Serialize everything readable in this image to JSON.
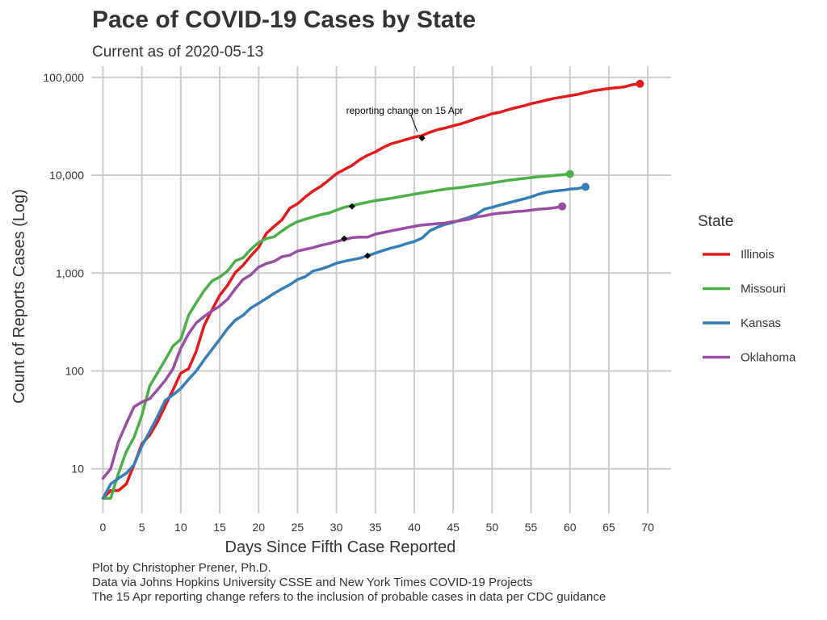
{
  "title": "Pace of COVID-19 Cases by State",
  "subtitle": "Current as of 2020-05-13",
  "caption": [
    "Plot by Christopher Prener, Ph.D.",
    "Data via Johns Hopkins University CSSE and New York Times COVID-19 Projects",
    "The 15 Apr reporting change refers to the inclusion of probable cases in data per CDC guidance"
  ],
  "chart_data": {
    "type": "line",
    "title": "Pace of COVID-19 Cases by State",
    "subtitle": "Current as of 2020-05-13",
    "xlabel": "Days Since Fifth Case Reported",
    "ylabel": "Count of Reports Cases (Log)",
    "y_scale": "log",
    "xlim": [
      -1.5,
      73
    ],
    "ylim": [
      3.5,
      130000
    ],
    "x_ticks": [
      0,
      5,
      10,
      15,
      20,
      25,
      30,
      35,
      40,
      45,
      50,
      55,
      60,
      65,
      70
    ],
    "x_tick_labels": [
      "0",
      "5",
      "10",
      "15",
      "20",
      "25",
      "30",
      "35",
      "40",
      "45",
      "50",
      "55",
      "60",
      "65",
      "70"
    ],
    "y_ticks": [
      10,
      100,
      1000,
      10000,
      100000
    ],
    "y_tick_labels": [
      "10",
      "100",
      "1,000",
      "10,000",
      "100,000"
    ],
    "grid": true,
    "legend": {
      "title": "State",
      "position": "right"
    },
    "annotation": {
      "text": "reporting change on 15 Apr",
      "x": 41,
      "y": 24000
    },
    "series": [
      {
        "name": "Illinois",
        "color": "#e41a1c",
        "x": [
          0,
          1,
          2,
          3,
          4,
          5,
          6,
          7,
          8,
          9,
          10,
          11,
          12,
          13,
          14,
          15,
          16,
          17,
          18,
          19,
          20,
          21,
          22,
          23,
          24,
          25,
          26,
          27,
          28,
          29,
          30,
          31,
          32,
          33,
          34,
          35,
          36,
          37,
          38,
          39,
          40,
          41,
          42,
          43,
          44,
          45,
          46,
          47,
          48,
          49,
          50,
          51,
          52,
          53,
          54,
          55,
          56,
          57,
          58,
          59,
          60,
          61,
          62,
          63,
          64,
          65,
          66,
          67,
          68,
          69
        ],
        "y": [
          5,
          6,
          6,
          7,
          11,
          18,
          22,
          30,
          44,
          64,
          95,
          105,
          160,
          290,
          420,
          590,
          750,
          1010,
          1200,
          1500,
          1830,
          2540,
          3000,
          3500,
          4600,
          5100,
          6000,
          6900,
          7700,
          8900,
          10360,
          11400,
          12600,
          14400,
          16000,
          17300,
          19200,
          20900,
          22000,
          23200,
          24500,
          25400,
          27500,
          29200,
          30400,
          32000,
          33500,
          35600,
          38000,
          40000,
          42500,
          44000,
          46500,
          48900,
          51000,
          53900,
          56000,
          58500,
          61000,
          62900,
          65000,
          67000,
          70000,
          73000,
          75000,
          77000,
          78500,
          80000,
          84000,
          86000
        ]
      },
      {
        "name": "Missouri",
        "color": "#4daf4a",
        "x": [
          0,
          1,
          2,
          3,
          4,
          5,
          6,
          7,
          8,
          9,
          10,
          11,
          12,
          13,
          14,
          15,
          16,
          17,
          18,
          19,
          20,
          21,
          22,
          23,
          24,
          25,
          26,
          27,
          28,
          29,
          30,
          31,
          32,
          33,
          34,
          35,
          36,
          37,
          38,
          39,
          40,
          41,
          42,
          43,
          44,
          45,
          46,
          47,
          48,
          49,
          50,
          51,
          52,
          53,
          54,
          55,
          56,
          57,
          58,
          59,
          60
        ],
        "y": [
          5,
          5,
          9,
          15,
          21,
          35,
          70,
          95,
          130,
          180,
          210,
          370,
          500,
          660,
          830,
          910,
          1050,
          1330,
          1430,
          1750,
          2050,
          2250,
          2350,
          2700,
          3050,
          3350,
          3550,
          3750,
          3950,
          4100,
          4400,
          4700,
          4900,
          5100,
          5300,
          5500,
          5650,
          5800,
          6000,
          6200,
          6400,
          6600,
          6800,
          7000,
          7200,
          7350,
          7500,
          7700,
          7900,
          8100,
          8350,
          8600,
          8850,
          9050,
          9250,
          9450,
          9650,
          9800,
          9950,
          10100,
          10300
        ]
      },
      {
        "name": "Kansas",
        "color": "#377eb8",
        "x": [
          0,
          1,
          2,
          3,
          4,
          5,
          6,
          7,
          8,
          9,
          10,
          11,
          12,
          13,
          14,
          15,
          16,
          17,
          18,
          19,
          20,
          21,
          22,
          23,
          24,
          25,
          26,
          27,
          28,
          29,
          30,
          31,
          32,
          33,
          34,
          35,
          36,
          37,
          38,
          39,
          40,
          41,
          42,
          43,
          44,
          45,
          46,
          47,
          48,
          49,
          50,
          51,
          52,
          53,
          54,
          55,
          56,
          57,
          58,
          59,
          60,
          61,
          62
        ],
        "y": [
          5,
          7,
          8,
          9,
          11,
          17,
          24,
          34,
          50,
          57,
          66,
          82,
          100,
          130,
          165,
          210,
          270,
          330,
          370,
          440,
          490,
          550,
          620,
          690,
          760,
          860,
          920,
          1050,
          1100,
          1170,
          1260,
          1320,
          1370,
          1420,
          1500,
          1600,
          1700,
          1800,
          1880,
          2000,
          2100,
          2280,
          2700,
          2950,
          3150,
          3300,
          3500,
          3700,
          4000,
          4500,
          4700,
          4950,
          5200,
          5450,
          5700,
          6000,
          6400,
          6700,
          6900,
          7000,
          7200,
          7300,
          7600
        ]
      },
      {
        "name": "Oklahoma",
        "color": "#984ea3",
        "x": [
          0,
          1,
          2,
          3,
          4,
          5,
          6,
          7,
          8,
          9,
          10,
          11,
          12,
          13,
          14,
          15,
          16,
          17,
          18,
          19,
          20,
          21,
          22,
          23,
          24,
          25,
          26,
          27,
          28,
          29,
          30,
          31,
          32,
          33,
          34,
          35,
          36,
          37,
          38,
          39,
          40,
          41,
          42,
          43,
          44,
          45,
          46,
          47,
          48,
          49,
          50,
          51,
          52,
          53,
          54,
          55,
          56,
          57,
          58,
          59
        ],
        "y": [
          8,
          10,
          19,
          29,
          43,
          48,
          52,
          64,
          80,
          105,
          170,
          240,
          310,
          360,
          410,
          460,
          540,
          690,
          860,
          960,
          1150,
          1250,
          1320,
          1470,
          1520,
          1680,
          1750,
          1820,
          1920,
          2000,
          2100,
          2200,
          2300,
          2330,
          2330,
          2500,
          2600,
          2700,
          2800,
          2900,
          3000,
          3100,
          3150,
          3200,
          3250,
          3350,
          3450,
          3550,
          3750,
          3850,
          4000,
          4100,
          4150,
          4250,
          4300,
          4400,
          4500,
          4550,
          4650,
          4800
        ]
      }
    ],
    "markers": [
      {
        "series": "Illinois",
        "x": 41,
        "y": 24000
      },
      {
        "series": "Missouri",
        "x": 32,
        "y": 4800
      },
      {
        "series": "Kansas",
        "x": 34,
        "y": 1500
      },
      {
        "series": "Oklahoma",
        "x": 31,
        "y": 2250
      }
    ]
  }
}
